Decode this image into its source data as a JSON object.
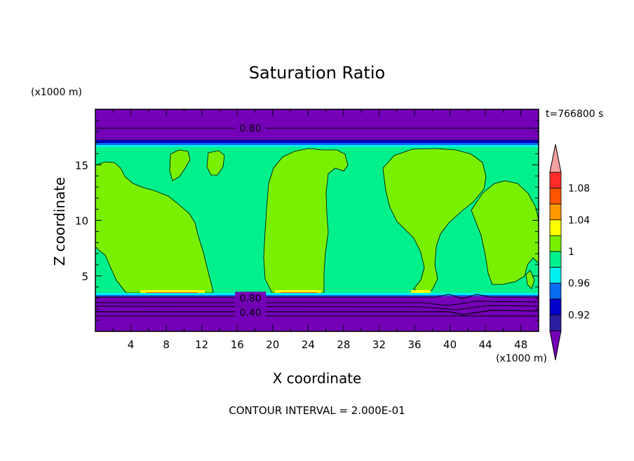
{
  "chart_data": {
    "type": "contour",
    "title": "Saturation Ratio",
    "xlabel": "X coordinate",
    "ylabel": "Z coordinate",
    "x_unit": "(x1000 m)",
    "y_unit": "(x1000 m)",
    "time_label": "t=766800 s",
    "footer": "CONTOUR INTERVAL = 2.000E-01",
    "xlim": [
      0,
      50
    ],
    "ylim": [
      0,
      20
    ],
    "x_ticks": [
      4,
      8,
      12,
      16,
      20,
      24,
      28,
      32,
      36,
      40,
      44,
      48
    ],
    "y_ticks": [
      5,
      10,
      15
    ],
    "contour_labels": [
      {
        "text": "0.80",
        "x": 17.5,
        "z": 18.3
      },
      {
        "text": "0.80",
        "x": 17.5,
        "z": 3.0
      },
      {
        "text": "0.40",
        "x": 17.5,
        "z": 1.7
      }
    ],
    "colorbar": {
      "levels": [
        0.92,
        0.94,
        0.96,
        0.98,
        1.0,
        1.02,
        1.04,
        1.06,
        1.08,
        1.1
      ],
      "labels": [
        "0.92",
        "0.96",
        "1",
        "1.04",
        "1.08"
      ],
      "colors": [
        "#7400b8",
        "#2b1fa0",
        "#0000c8",
        "#0a6cf0",
        "#00f0f0",
        "#00f08c",
        "#78f000",
        "#ffff00",
        "#ff9900",
        "#ff5500",
        "#ff2a2a",
        "#f5a0a0"
      ]
    },
    "colors": {
      "supersaturated": "#78f000",
      "near_saturated": "#00f08c",
      "dry": "#7400b8",
      "boundary": "#0a6cf0"
    }
  }
}
